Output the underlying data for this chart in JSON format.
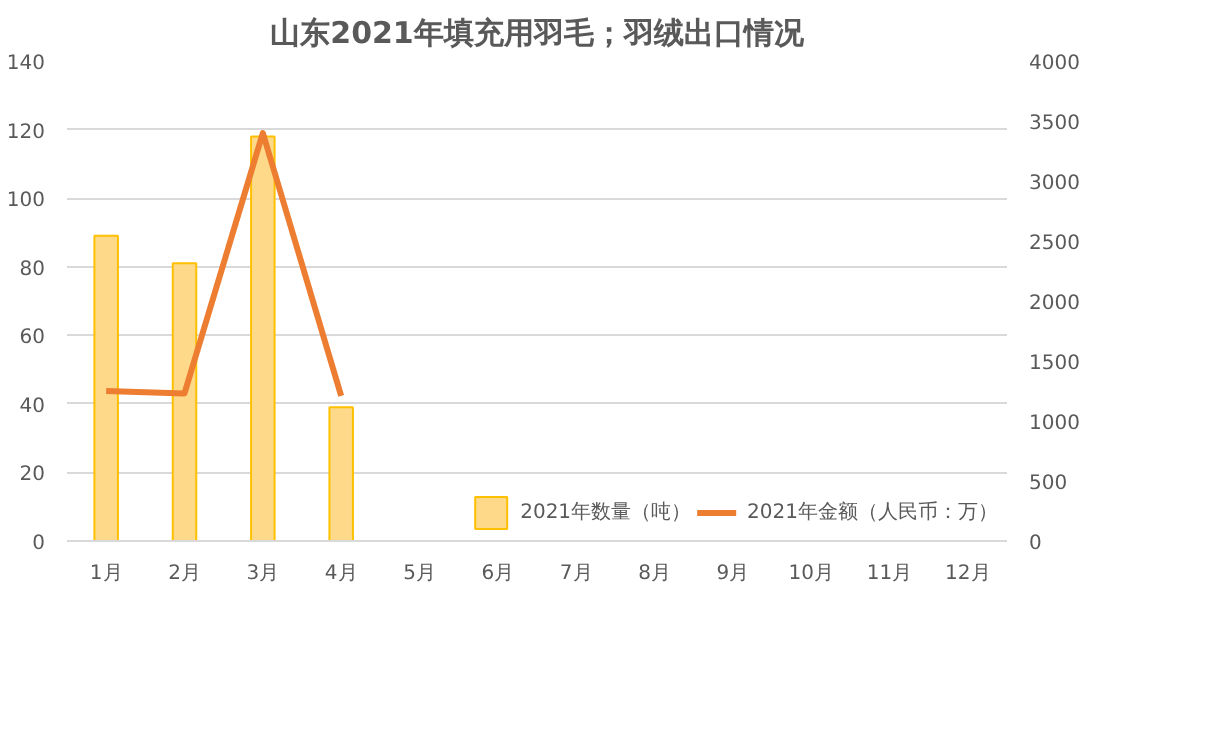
{
  "chart_data": {
    "type": "bar",
    "title": "山东2021年填充用羽毛；羽绒出口情况",
    "categories": [
      "1月",
      "2月",
      "3月",
      "4月",
      "5月",
      "6月",
      "7月",
      "8月",
      "9月",
      "10月",
      "11月",
      "12月"
    ],
    "series": [
      {
        "name": "2021年数量（吨）",
        "color": "#ffd98a",
        "values": [
          89,
          81,
          118,
          39,
          null,
          null,
          null,
          null,
          null,
          null,
          null,
          null
        ]
      },
      {
        "name": "2021年金额（人民币：万）",
        "type": "line",
        "axis": "y2",
        "color": "#ed7d31",
        "values": [
          1250,
          1230,
          3400,
          1210,
          null,
          null,
          null,
          null,
          null,
          null,
          null,
          null
        ]
      }
    ],
    "ylim": [
      0,
      140
    ],
    "yticks": [
      0,
      20,
      40,
      60,
      80,
      100,
      120,
      140
    ],
    "y2lim": [
      0,
      4000
    ],
    "y2ticks": [
      0,
      500,
      1000,
      1500,
      2000,
      2500,
      3000,
      3500,
      4000
    ],
    "grid": "y",
    "legend": "bottom"
  }
}
